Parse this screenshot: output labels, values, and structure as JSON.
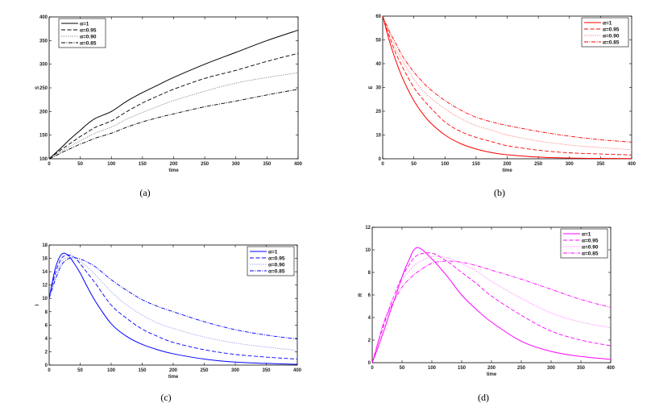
{
  "chart_data": [
    {
      "type": "line",
      "panel_label": "(a)",
      "xlabel": "time",
      "ylabel": "S",
      "xlim": [
        0,
        400
      ],
      "ylim": [
        100,
        400
      ],
      "xticks": [
        0,
        50,
        100,
        150,
        200,
        250,
        300,
        350,
        400
      ],
      "yticks": [
        100,
        150,
        200,
        250,
        300,
        350,
        400
      ],
      "legend_position": "top-left",
      "x": [
        0,
        10,
        20,
        30,
        40,
        50,
        60,
        75,
        100,
        125,
        150,
        175,
        200,
        250,
        300,
        350,
        400
      ],
      "series": [
        {
          "name": "α=1",
          "style": "solid",
          "color": "#000000",
          "values": [
            100,
            112,
            124,
            137,
            149,
            160,
            172,
            186,
            200,
            222,
            240,
            256,
            272,
            300,
            325,
            350,
            372
          ]
        },
        {
          "name": "α=0.95",
          "style": "dashed",
          "color": "#000000",
          "values": [
            100,
            110,
            120,
            129,
            138,
            147,
            155,
            167,
            180,
            200,
            218,
            233,
            247,
            270,
            287,
            306,
            323
          ]
        },
        {
          "name": "α=0.90",
          "style": "dotted",
          "color": "#999999",
          "values": [
            100,
            108,
            116,
            124,
            131,
            138,
            145,
            155,
            167,
            184,
            198,
            211,
            223,
            243,
            260,
            272,
            282
          ]
        },
        {
          "name": "α=0.85",
          "style": "dashdot",
          "color": "#000000",
          "values": [
            100,
            106,
            113,
            119,
            125,
            131,
            136,
            144,
            154,
            167,
            178,
            187,
            195,
            210,
            222,
            235,
            247
          ]
        }
      ]
    },
    {
      "type": "line",
      "panel_label": "(b)",
      "xlabel": "time",
      "ylabel": "E",
      "xlim": [
        0,
        400
      ],
      "ylim": [
        0,
        60
      ],
      "xticks": [
        0,
        50,
        100,
        150,
        200,
        250,
        300,
        350,
        400
      ],
      "yticks": [
        0,
        10,
        20,
        30,
        40,
        50,
        60
      ],
      "legend_position": "top-right",
      "x": [
        0,
        10,
        20,
        30,
        40,
        50,
        60,
        75,
        100,
        125,
        150,
        175,
        200,
        250,
        300,
        350,
        400
      ],
      "series": [
        {
          "name": "α=1",
          "style": "solid",
          "color": "#ff0000",
          "values": [
            60,
            50.2,
            42,
            35.1,
            29.4,
            24.5,
            20.5,
            15.6,
            10,
            6.4,
            4.1,
            2.6,
            1.7,
            0.7,
            0.3,
            0.15,
            0.1
          ]
        },
        {
          "name": "α=0.95",
          "style": "dashed",
          "color": "#ff0000",
          "values": [
            60,
            52,
            45,
            39.5,
            34.5,
            30,
            26.5,
            22,
            15.5,
            11.5,
            9,
            7.2,
            5.5,
            3.6,
            2.5,
            2,
            1.6
          ]
        },
        {
          "name": "α=0.90",
          "style": "dotted",
          "color": "#ff9090",
          "values": [
            60,
            53,
            47,
            42,
            37.5,
            33.5,
            30,
            26,
            21,
            17,
            14,
            12,
            10,
            7.5,
            5.8,
            4.7,
            3.8
          ]
        },
        {
          "name": "α=0.85",
          "style": "dashdot",
          "color": "#ff0000",
          "values": [
            60,
            54,
            49,
            44,
            40,
            36.5,
            33.5,
            29.5,
            24.5,
            20.5,
            17.5,
            15.5,
            14,
            11.5,
            9.5,
            8,
            7
          ]
        }
      ]
    },
    {
      "type": "line",
      "panel_label": "(c)",
      "xlabel": "time",
      "ylabel": "I",
      "xlim": [
        0,
        400
      ],
      "ylim": [
        0,
        18
      ],
      "xticks": [
        0,
        50,
        100,
        150,
        200,
        250,
        300,
        350,
        400
      ],
      "yticks": [
        0,
        2,
        4,
        6,
        8,
        10,
        12,
        14,
        16,
        18
      ],
      "legend_position": "top-right",
      "x": [
        0,
        10,
        20,
        30,
        40,
        50,
        60,
        75,
        100,
        125,
        150,
        175,
        200,
        250,
        300,
        350,
        400
      ],
      "series": [
        {
          "name": "α=1",
          "style": "solid",
          "color": "#0000ff",
          "values": [
            10,
            14.5,
            16.6,
            16.5,
            15.3,
            13.8,
            12,
            9.5,
            6.2,
            4.3,
            3.1,
            2.3,
            1.7,
            0.9,
            0.45,
            0.25,
            0.1
          ]
        },
        {
          "name": "α=0.95",
          "style": "dashed",
          "color": "#0000ff",
          "values": [
            10,
            13.8,
            16,
            16.5,
            16.2,
            15.2,
            14,
            12.2,
            9,
            7,
            5.4,
            4.3,
            3.4,
            2.3,
            1.6,
            1.2,
            0.9
          ]
        },
        {
          "name": "α=0.90",
          "style": "dotted",
          "color": "#a8a8f0",
          "values": [
            10,
            13.3,
            15.5,
            16.2,
            16.2,
            15.6,
            14.8,
            13.5,
            11,
            9,
            7.5,
            6.3,
            5.5,
            4.2,
            3.3,
            2.7,
            2.2
          ]
        },
        {
          "name": "α=0.85",
          "style": "dashdot",
          "color": "#0000ff",
          "values": [
            10,
            12.8,
            15,
            15.9,
            16.1,
            15.9,
            15.5,
            14.7,
            12.8,
            11.2,
            9.8,
            8.8,
            8,
            6.5,
            5.3,
            4.5,
            3.9
          ]
        }
      ]
    },
    {
      "type": "line",
      "panel_label": "(d)",
      "xlabel": "time",
      "ylabel": "R",
      "xlim": [
        0,
        400
      ],
      "ylim": [
        0,
        12
      ],
      "xticks": [
        0,
        50,
        100,
        150,
        200,
        250,
        300,
        350,
        400
      ],
      "yticks": [
        0,
        2,
        4,
        6,
        8,
        10,
        12
      ],
      "legend_position": "top-right",
      "x": [
        0,
        10,
        20,
        30,
        40,
        50,
        60,
        75,
        100,
        125,
        150,
        175,
        200,
        250,
        300,
        350,
        400
      ],
      "series": [
        {
          "name": "α=1",
          "style": "solid",
          "color": "#ff00ff",
          "values": [
            0,
            1.4,
            2.9,
            4.5,
            6.0,
            7.6,
            8.9,
            10.2,
            9.2,
            7.7,
            6.0,
            4.7,
            3.6,
            1.9,
            1.0,
            0.55,
            0.3
          ]
        },
        {
          "name": "α=0.95",
          "style": "dashed",
          "color": "#ff00ff",
          "values": [
            0,
            1.8,
            3.4,
            5,
            6.4,
            7.6,
            8.5,
            9.5,
            9.7,
            9,
            8,
            7,
            5.9,
            4.2,
            2.8,
            2,
            1.5
          ]
        },
        {
          "name": "α=0.90",
          "style": "dotted",
          "color": "#ff90ff",
          "values": [
            0,
            2,
            3.8,
            5.2,
            6.3,
            7.3,
            8,
            8.8,
            9.4,
            9.3,
            8.8,
            8.1,
            7.2,
            5.7,
            4.4,
            3.6,
            3.1
          ]
        },
        {
          "name": "α=0.85",
          "style": "dashdot",
          "color": "#ff00ff",
          "values": [
            0,
            1.8,
            3.6,
            4.8,
            5.8,
            6.7,
            7.3,
            8,
            8.8,
            9,
            8.9,
            8.6,
            8.2,
            7.4,
            6.5,
            5.6,
            4.9
          ]
        }
      ]
    }
  ]
}
